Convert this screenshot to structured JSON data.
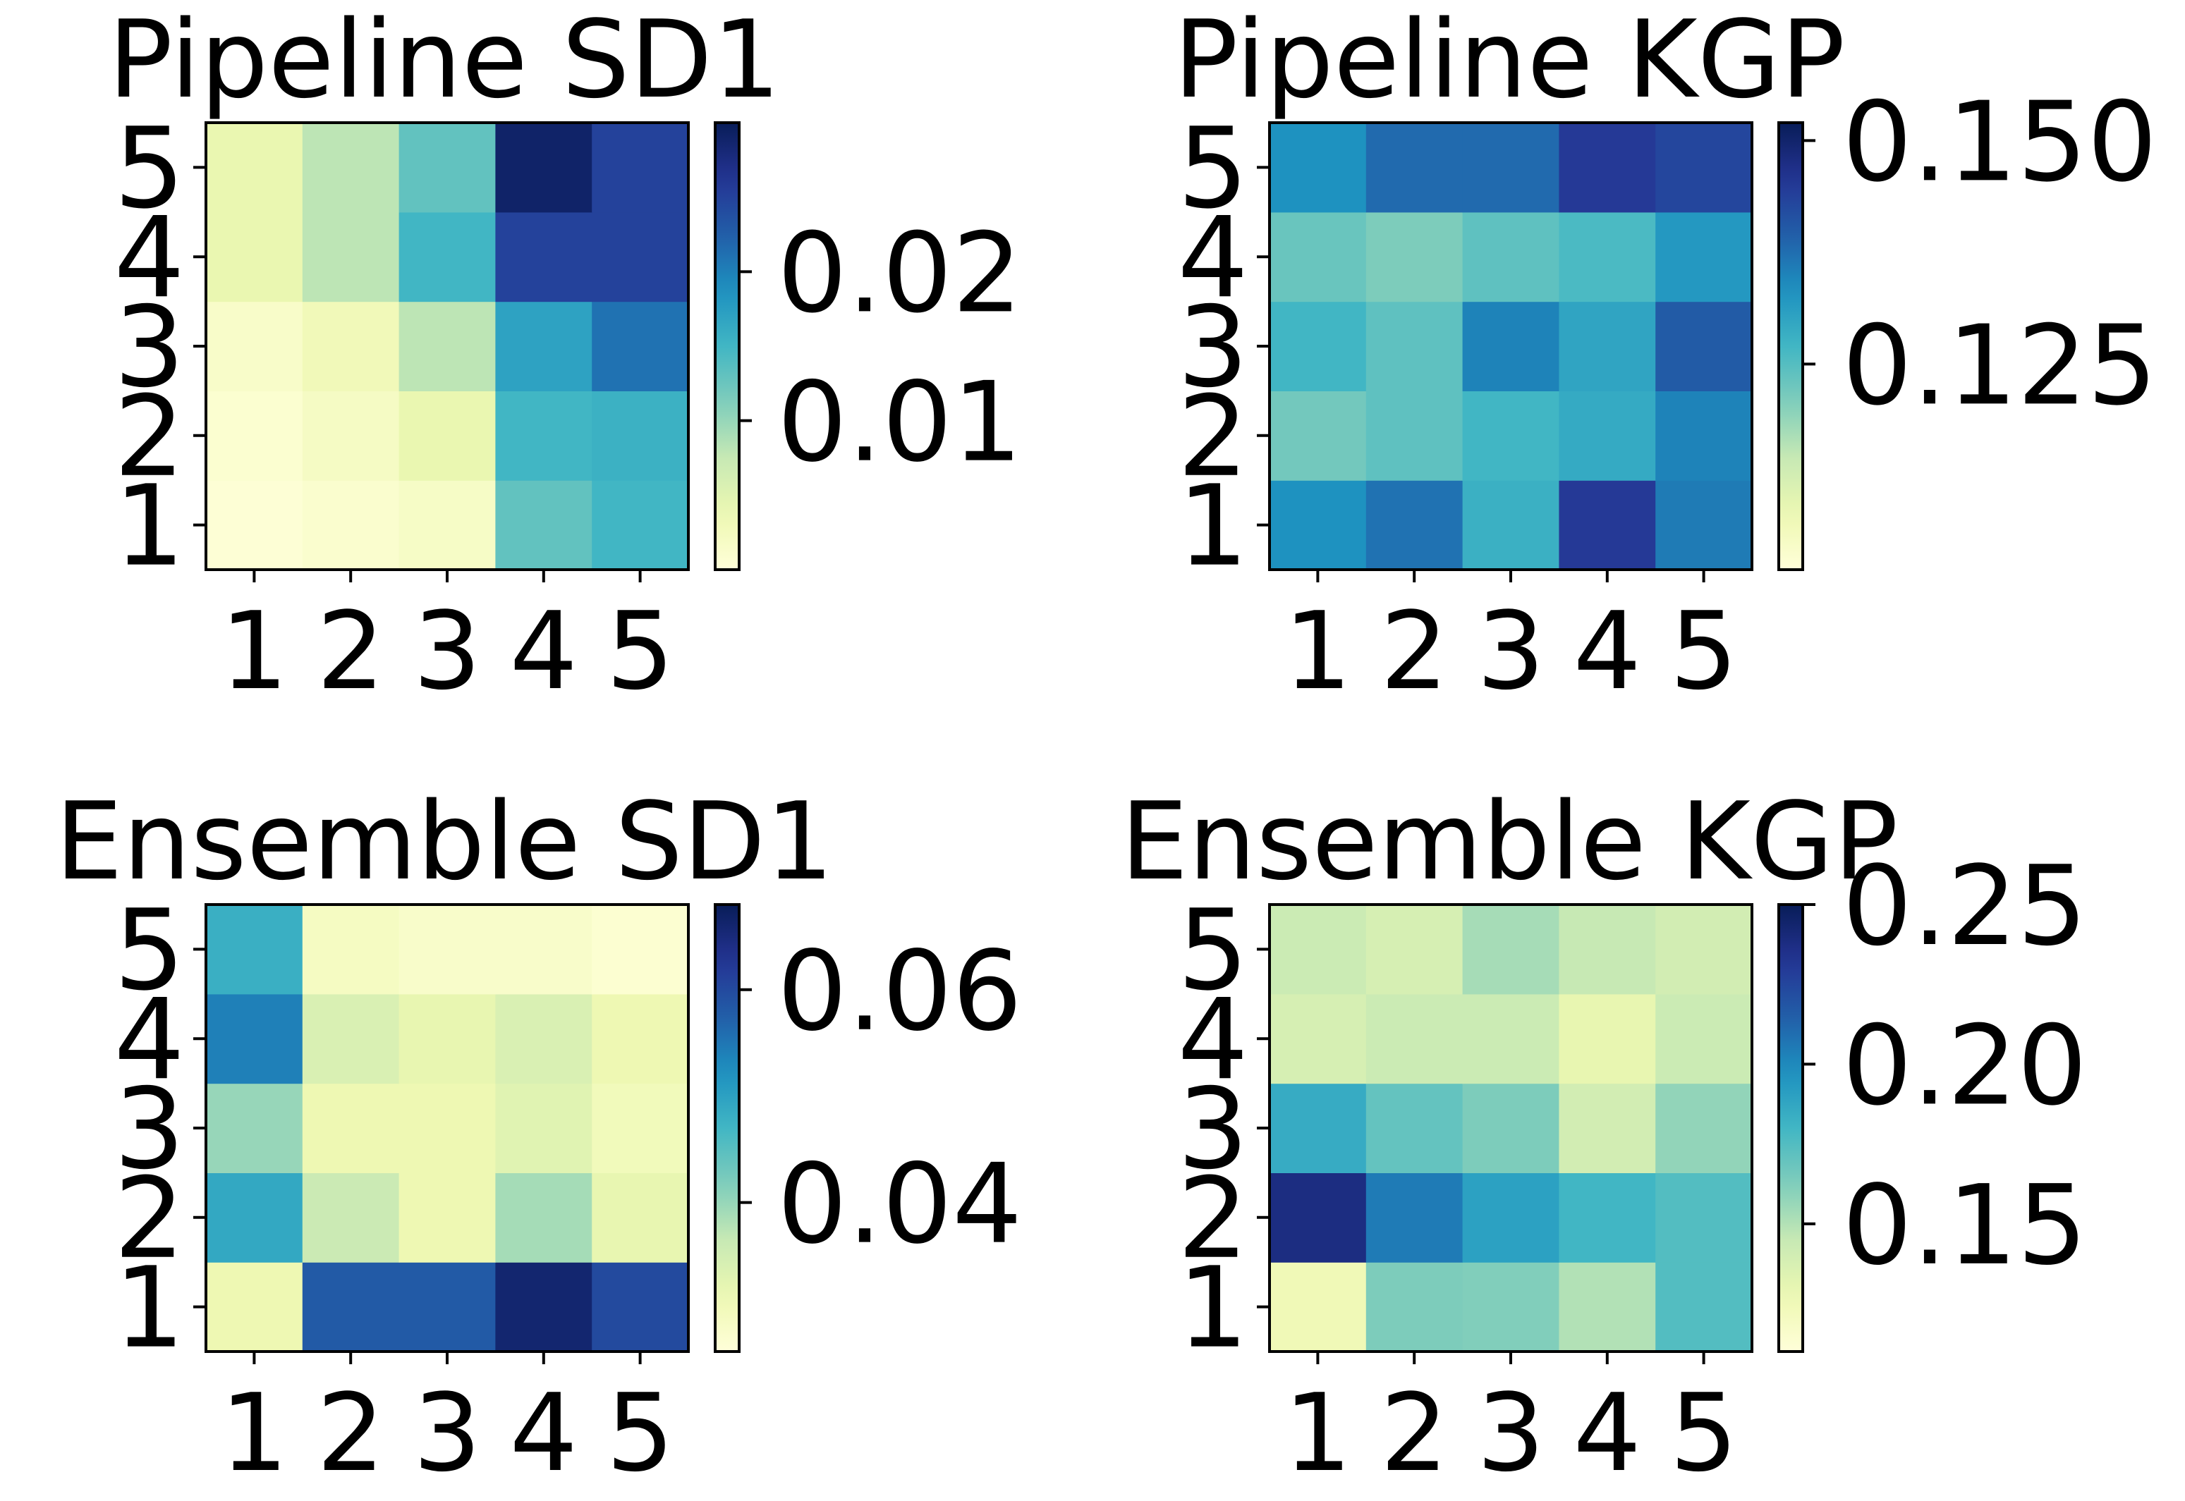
{
  "chart_data": [
    {
      "type": "heatmap",
      "title": "Pipeline SD1",
      "x_ticks": [
        "1",
        "2",
        "3",
        "4",
        "5"
      ],
      "y_ticks": [
        "1",
        "2",
        "3",
        "4",
        "5"
      ],
      "y_origin": "bottom",
      "colormap": "YlGnBu",
      "vmin": 0.0,
      "vmax": 0.03,
      "colorbar_ticks": [
        {
          "value": 0.01,
          "label": "0.01"
        },
        {
          "value": 0.02,
          "label": "0.02"
        }
      ],
      "values": [
        [
          0.0004,
          0.001,
          0.0018,
          0.013,
          0.015
        ],
        [
          0.0008,
          0.002,
          0.004,
          0.015,
          0.0155
        ],
        [
          0.0015,
          0.003,
          0.008,
          0.017,
          0.021
        ],
        [
          0.004,
          0.008,
          0.015,
          0.025,
          0.025
        ],
        [
          0.004,
          0.008,
          0.013,
          0.029,
          0.025
        ]
      ]
    },
    {
      "type": "heatmap",
      "title": "Pipeline KGP",
      "x_ticks": [
        "1",
        "2",
        "3",
        "4",
        "5"
      ],
      "y_ticks": [
        "1",
        "2",
        "3",
        "4",
        "5"
      ],
      "y_origin": "bottom",
      "colormap": "YlGnBu",
      "vmin": 0.102,
      "vmax": 0.152,
      "colorbar_ticks": [
        {
          "value": 0.125,
          "label": "0.125"
        },
        {
          "value": 0.15,
          "label": "0.150"
        }
      ],
      "values": [
        [
          0.133,
          0.137,
          0.128,
          0.145,
          0.136
        ],
        [
          0.122,
          0.124,
          0.127,
          0.129,
          0.135
        ],
        [
          0.127,
          0.124,
          0.135,
          0.13,
          0.14
        ],
        [
          0.123,
          0.121,
          0.124,
          0.126,
          0.132
        ],
        [
          0.133,
          0.138,
          0.138,
          0.145,
          0.143
        ]
      ]
    },
    {
      "type": "heatmap",
      "title": "Ensemble SD1",
      "x_ticks": [
        "1",
        "2",
        "3",
        "4",
        "5"
      ],
      "y_ticks": [
        "1",
        "2",
        "3",
        "4",
        "5"
      ],
      "y_origin": "bottom",
      "colormap": "YlGnBu",
      "vmin": 0.026,
      "vmax": 0.068,
      "colorbar_ticks": [
        {
          "value": 0.04,
          "label": "0.04"
        },
        {
          "value": 0.06,
          "label": "0.06"
        }
      ],
      "values": [
        [
          0.031,
          0.058,
          0.058,
          0.066,
          0.06
        ],
        [
          0.049,
          0.036,
          0.031,
          0.039,
          0.032
        ],
        [
          0.04,
          0.031,
          0.031,
          0.033,
          0.03
        ],
        [
          0.054,
          0.034,
          0.032,
          0.034,
          0.031
        ],
        [
          0.048,
          0.029,
          0.028,
          0.028,
          0.027
        ]
      ]
    },
    {
      "type": "heatmap",
      "title": "Ensemble KGP",
      "x_ticks": [
        "1",
        "2",
        "3",
        "4",
        "5"
      ],
      "y_ticks": [
        "1",
        "2",
        "3",
        "4",
        "5"
      ],
      "y_origin": "bottom",
      "colormap": "YlGnBu",
      "vmin": 0.11,
      "vmax": 0.25,
      "colorbar_ticks": [
        {
          "value": 0.15,
          "label": "0.15"
        },
        {
          "value": 0.2,
          "label": "0.20"
        },
        {
          "value": 0.25,
          "label": "0.25"
        }
      ],
      "values": [
        [
          0.125,
          0.163,
          0.162,
          0.15,
          0.175
        ],
        [
          0.238,
          0.205,
          0.19,
          0.18,
          0.175
        ],
        [
          0.185,
          0.17,
          0.163,
          0.14,
          0.158
        ],
        [
          0.138,
          0.143,
          0.143,
          0.13,
          0.143
        ],
        [
          0.143,
          0.138,
          0.153,
          0.145,
          0.14
        ]
      ]
    }
  ]
}
